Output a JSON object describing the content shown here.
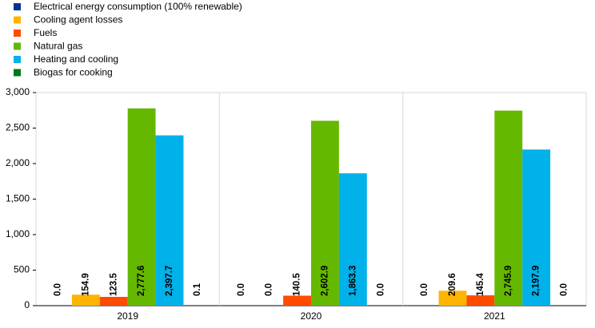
{
  "chart_data": {
    "type": "bar",
    "categories": [
      "2019",
      "2020",
      "2021"
    ],
    "series": [
      {
        "name": "Electrical energy consumption (100% renewable)",
        "color": "#003299",
        "values": [
          0,
          0,
          0
        ],
        "value_labels": [
          "0.0",
          "0.0",
          "0.0"
        ]
      },
      {
        "name": "Cooling agent losses",
        "color": "#FFB400",
        "values": [
          154.9,
          0,
          209.6
        ],
        "value_labels": [
          "154.9",
          "0.0",
          "209.6"
        ]
      },
      {
        "name": "Fuels",
        "color": "#FF4B00",
        "values": [
          123.5,
          140.5,
          145.4
        ],
        "value_labels": [
          "123.5",
          "140.5",
          "145.4"
        ]
      },
      {
        "name": "Natural gas",
        "color": "#65B800",
        "values": [
          2777.6,
          2602.9,
          2745.9
        ],
        "value_labels": [
          "2,777.6",
          "2,602.9",
          "2,745.9"
        ]
      },
      {
        "name": "Heating and cooling",
        "color": "#00B1EA",
        "values": [
          2397.7,
          1863.3,
          2197.9
        ],
        "value_labels": [
          "2,397.7",
          "1,863.3",
          "2,197.9"
        ]
      },
      {
        "name": "Biogas for cooking",
        "color": "#007816",
        "values": [
          0.1,
          0,
          0
        ],
        "value_labels": [
          "0.1",
          "0.0",
          "0.0"
        ]
      }
    ],
    "ylim": [
      0,
      3000
    ],
    "yticks": [
      0,
      500,
      {
        "value": 1000,
        "label": "1,000"
      },
      {
        "value": 1500,
        "label": "1,500"
      },
      {
        "value": 2000,
        "label": "2,000"
      },
      {
        "value": 2500,
        "label": "2,500"
      },
      {
        "value": 3000,
        "label": "3,000"
      }
    ],
    "legend": "top-left"
  }
}
